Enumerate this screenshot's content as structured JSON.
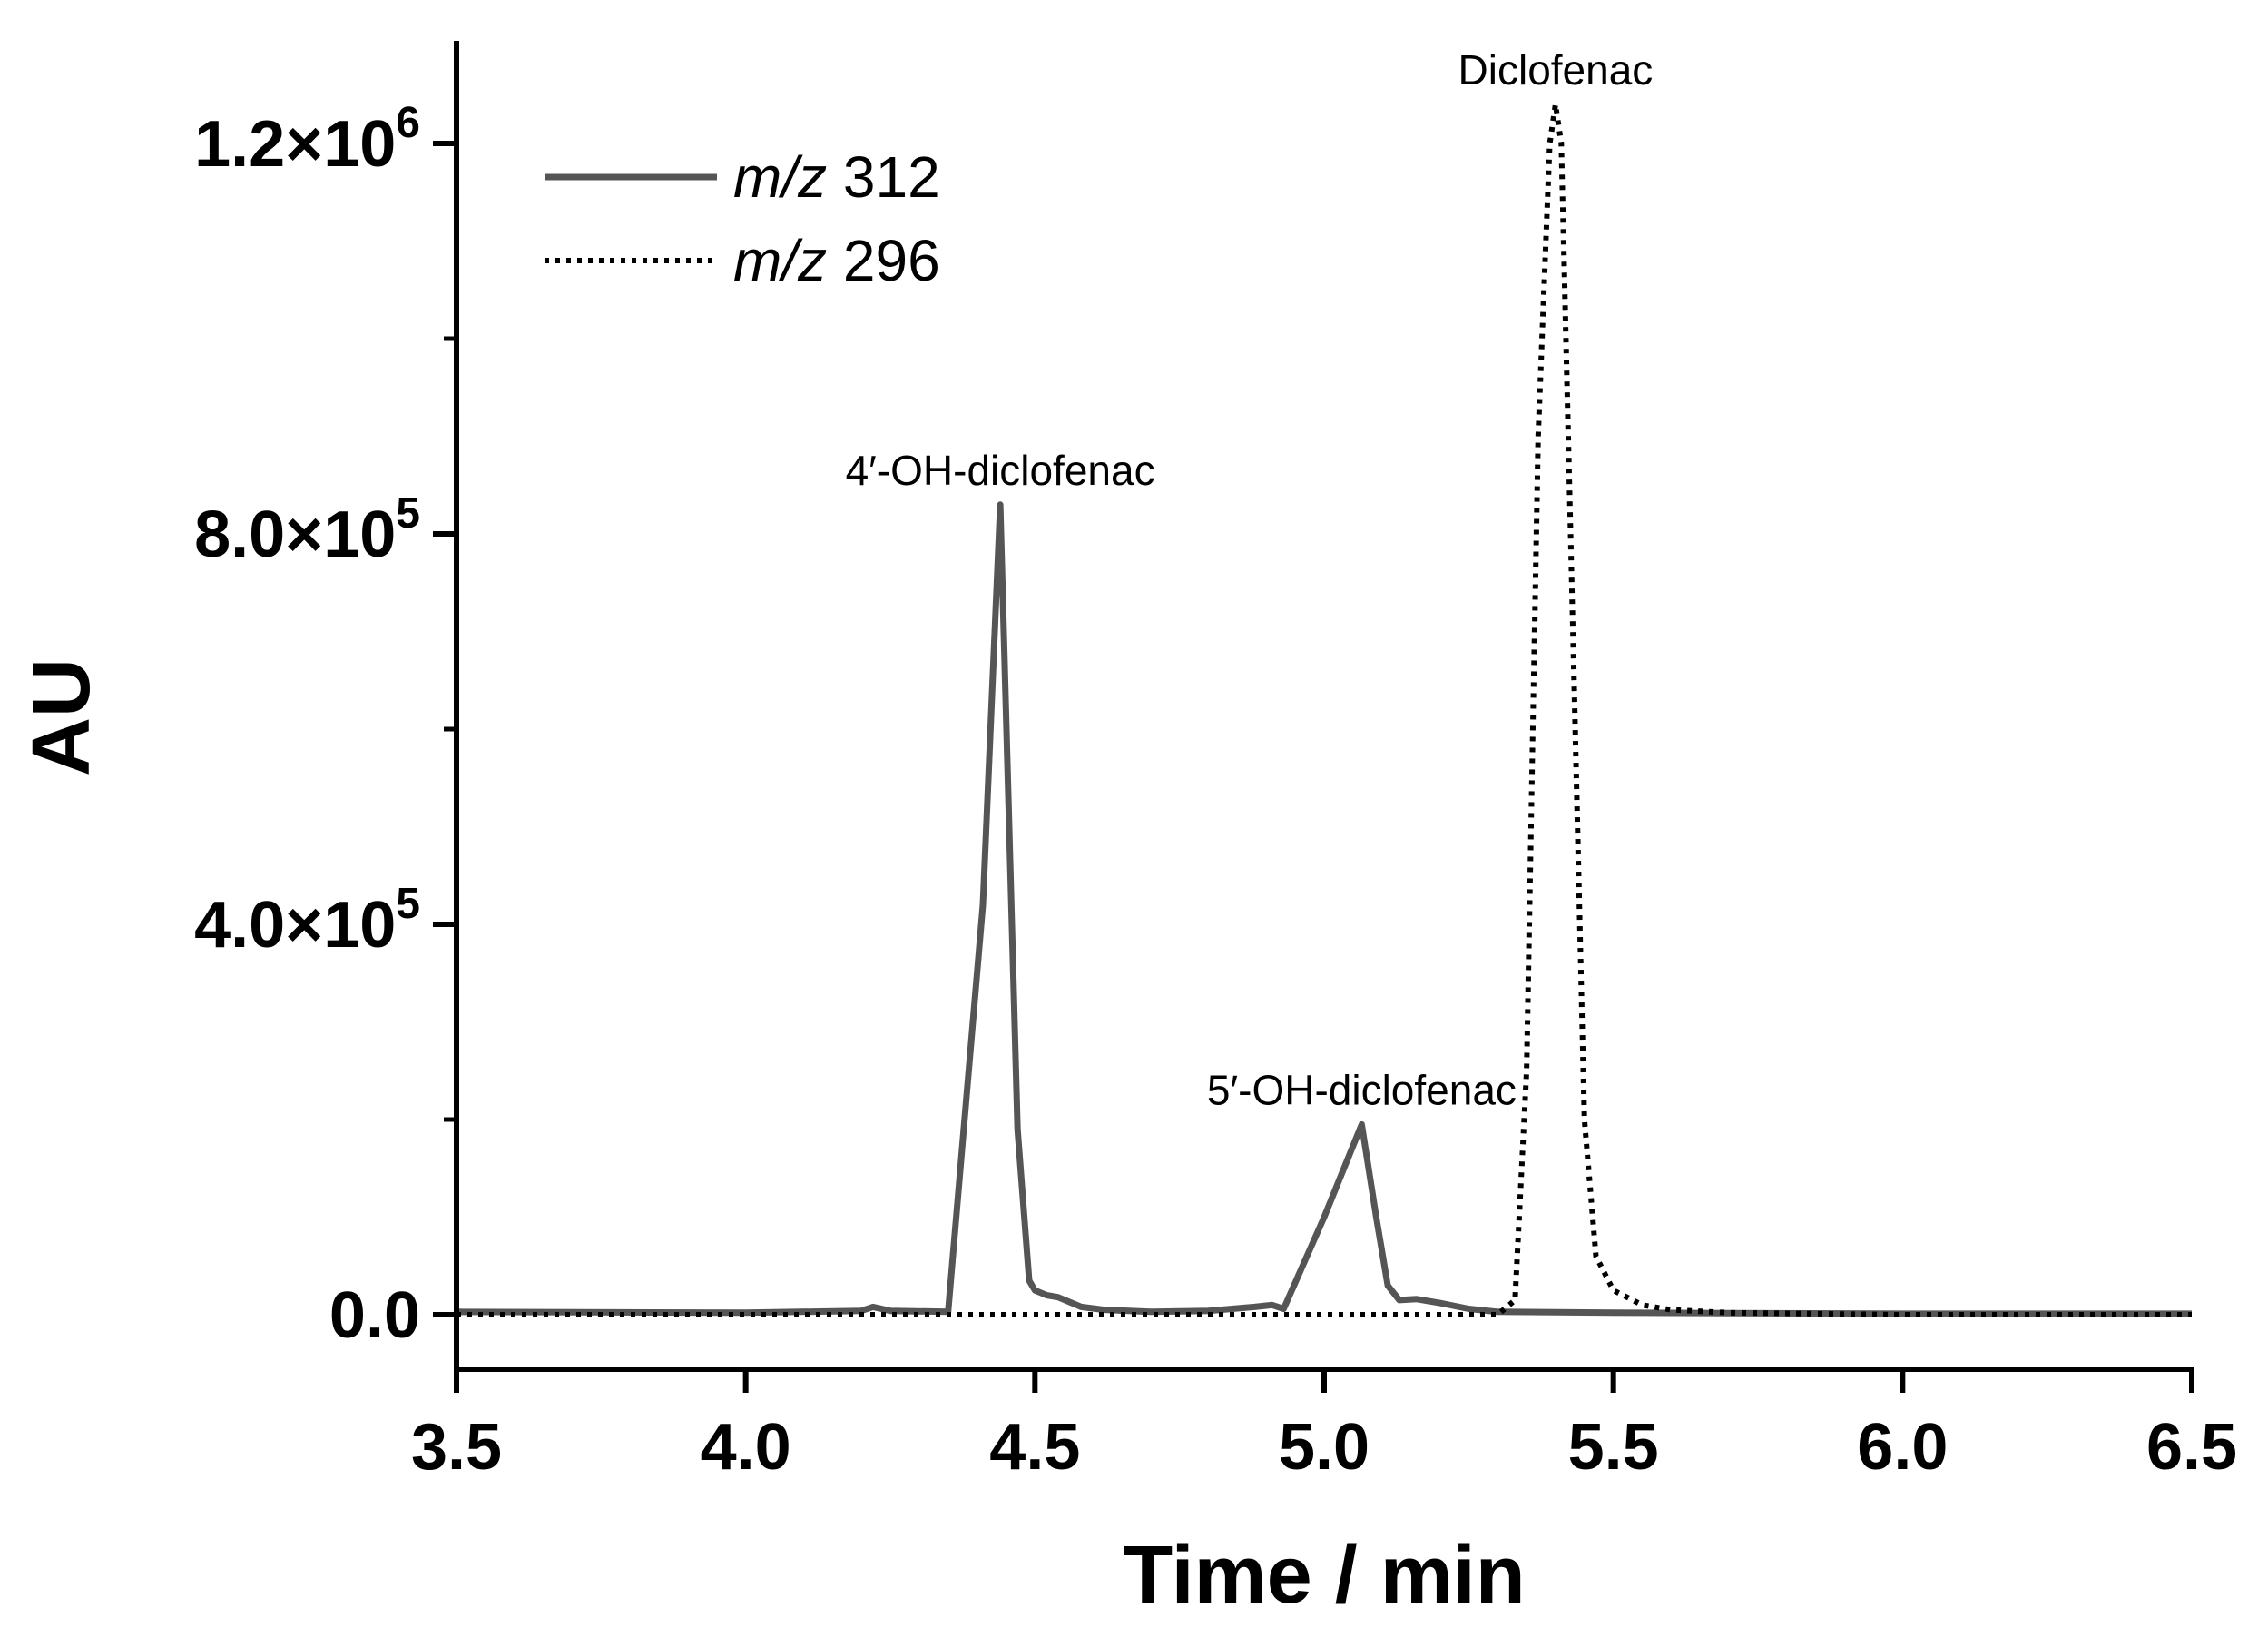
{
  "chart_data": {
    "type": "line",
    "title": "",
    "xlabel": "Time / min",
    "ylabel": "AU",
    "xlim": [
      3.5,
      6.5
    ],
    "ylim": [
      -55000,
      1300000
    ],
    "x_ticks": [
      {
        "value": 3.5,
        "label": "3.5"
      },
      {
        "value": 4.0,
        "label": "4.0"
      },
      {
        "value": 4.5,
        "label": "4.5"
      },
      {
        "value": 5.0,
        "label": "5.0"
      },
      {
        "value": 5.5,
        "label": "5.5"
      },
      {
        "value": 6.0,
        "label": "6.0"
      },
      {
        "value": 6.5,
        "label": "6.5"
      }
    ],
    "y_ticks_major": [
      {
        "value": 0,
        "mantissa": "0.0",
        "exponent": ""
      },
      {
        "value": 400000,
        "mantissa": "4.0×10",
        "exponent": "5"
      },
      {
        "value": 800000,
        "mantissa": "8.0×10",
        "exponent": "5"
      },
      {
        "value": 1200000,
        "mantissa": "1.2×10",
        "exponent": "6"
      }
    ],
    "y_ticks_minor": [
      200000,
      600000,
      1000000
    ],
    "grid": false,
    "legend_position": "top-left",
    "series": [
      {
        "name": "m/z 312",
        "name_italic": "m/z",
        "name_rest": " 312",
        "style": "solid",
        "color": "#555555",
        "x": [
          3.5,
          4.0,
          4.2,
          4.22,
          4.25,
          4.35,
          4.41,
          4.44,
          4.47,
          4.49,
          4.5,
          4.52,
          4.54,
          4.58,
          4.62,
          4.7,
          4.8,
          4.88,
          4.91,
          4.93,
          5.0,
          5.065,
          5.09,
          5.11,
          5.13,
          5.16,
          5.2,
          5.25,
          5.3,
          5.5,
          6.0,
          6.5
        ],
        "y": [
          3000,
          2000,
          4000,
          8000,
          4000,
          3000,
          420000,
          830000,
          190000,
          35000,
          25000,
          20000,
          18000,
          8000,
          5000,
          3000,
          4000,
          8000,
          10000,
          6000,
          100000,
          195000,
          100000,
          30000,
          15000,
          16000,
          12000,
          6000,
          3000,
          2000,
          1000,
          1000
        ]
      },
      {
        "name": "m/z 296",
        "name_italic": "m/z",
        "name_rest": " 296",
        "style": "dotted",
        "color": "#000000",
        "x": [
          3.5,
          4.0,
          5.0,
          5.3,
          5.33,
          5.35,
          5.37,
          5.39,
          5.4,
          5.41,
          5.43,
          5.45,
          5.47,
          5.5,
          5.55,
          5.6,
          5.7,
          6.0,
          6.5
        ],
        "y": [
          0,
          0,
          0,
          0,
          15000,
          250000,
          900000,
          1200000,
          1240000,
          1200000,
          700000,
          200000,
          60000,
          25000,
          10000,
          5000,
          2000,
          0,
          0
        ]
      }
    ],
    "annotations": [
      {
        "text": "4′-OH-diclofenac",
        "x": 4.44,
        "y": 830000
      },
      {
        "text": "5′-OH-diclofenac",
        "x": 5.065,
        "y": 195000
      },
      {
        "text": "Diclofenac",
        "x": 5.4,
        "y": 1240000
      }
    ]
  }
}
